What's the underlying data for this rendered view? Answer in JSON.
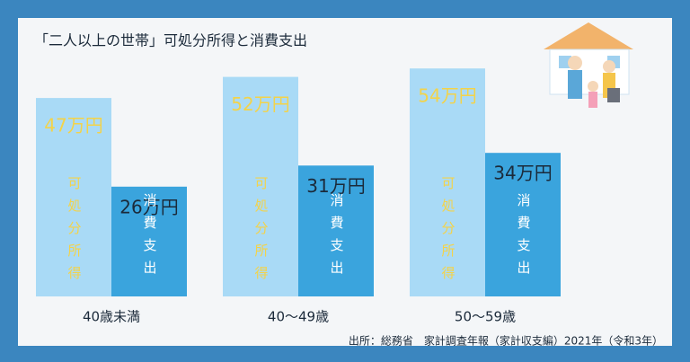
{
  "chart_data": {
    "type": "bar",
    "title": "「二人以上の世帯」可処分所得と消費支出",
    "categories": [
      "40歳未満",
      "40〜49歳",
      "50〜59歳"
    ],
    "series": [
      {
        "name": "可処分所得",
        "color": "#a9daf6",
        "label_color": "#f3d34a",
        "values": [
          47,
          52,
          54
        ],
        "value_labels": [
          "47万円",
          "52万円",
          "54万円"
        ]
      },
      {
        "name": "消費支出",
        "color": "#3aa4dd",
        "label_color": "#1b2a3a",
        "values": [
          26,
          31,
          34
        ],
        "value_labels": [
          "26万円",
          "31万円",
          "34万円"
        ]
      }
    ],
    "source": "出所：総務省　家計調査年報（家計収支編）2021年（令和3年）"
  }
}
